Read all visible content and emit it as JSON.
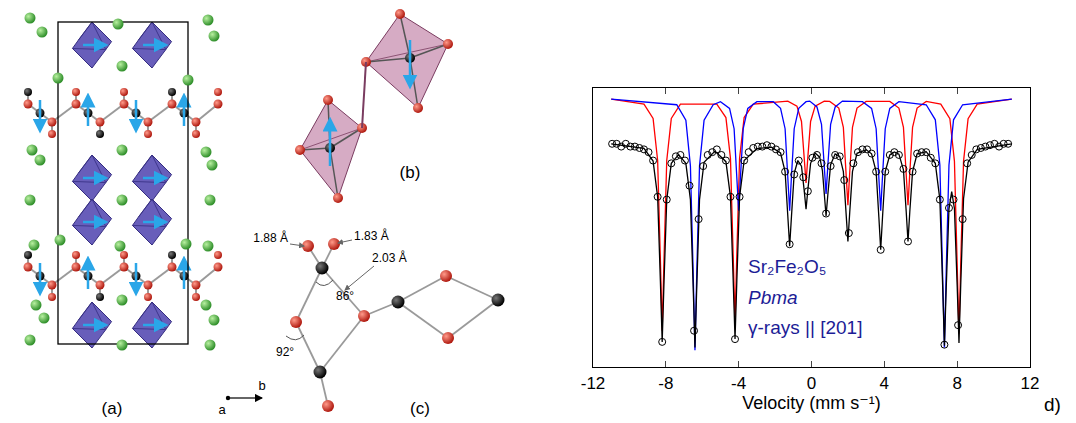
{
  "chart_data": {
    "type": "scatter",
    "x_label": "Velocity (mm s⁻¹)",
    "annotations": [
      {
        "text": "Sr₂Fe₂O₅"
      },
      {
        "text": "Pbma"
      },
      {
        "text": "γ-rays || [201]"
      }
    ],
    "xlim": [
      -12,
      12
    ],
    "xticks": [
      -12,
      -8,
      -4,
      0,
      4,
      8,
      12
    ],
    "ylim": [
      0,
      1
    ],
    "tick_labels": "x",
    "grid": false,
    "series": [
      {
        "type": "line",
        "color": "#ff0000",
        "line_style": "solid",
        "x": [
          -11,
          -9.2,
          -8.7,
          -8.45,
          -8.3,
          -8.2,
          -8.1,
          -7.95,
          -7.7,
          -7.2,
          -5.2,
          -4.7,
          -4.45,
          -4.3,
          -4.2,
          -4.1,
          -3.95,
          -3.7,
          -3.2,
          -1.3,
          -0.8,
          -0.55,
          -0.4,
          -0.3,
          -0.2,
          -0.05,
          0.2,
          0.7,
          1.0,
          1.5,
          1.75,
          1.9,
          2.0,
          2.1,
          2.25,
          2.5,
          3.0,
          4.3,
          4.8,
          5.05,
          5.2,
          5.3,
          5.4,
          5.55,
          5.8,
          6.3,
          7.1,
          7.6,
          7.85,
          8.0,
          8.1,
          8.2,
          8.35,
          8.6,
          9.1,
          11
        ],
        "values": [
          0.96,
          0.942,
          0.891,
          0.74,
          0.387,
          0.13,
          0.387,
          0.74,
          0.891,
          0.942,
          0.942,
          0.894,
          0.748,
          0.408,
          0.16,
          0.408,
          0.748,
          0.894,
          0.942,
          0.953,
          0.935,
          0.88,
          0.753,
          0.66,
          0.753,
          0.88,
          0.935,
          0.953,
          0.952,
          0.928,
          0.859,
          0.698,
          0.58,
          0.698,
          0.859,
          0.928,
          0.952,
          0.952,
          0.928,
          0.859,
          0.698,
          0.58,
          0.698,
          0.859,
          0.928,
          0.952,
          0.942,
          0.89,
          0.737,
          0.38,
          0.12,
          0.38,
          0.737,
          0.89,
          0.942,
          0.96
        ]
      },
      {
        "type": "line",
        "color": "#0000ff",
        "line_style": "solid",
        "x": [
          -11,
          -7.4,
          -6.9,
          -6.65,
          -6.5,
          -6.4,
          -6.3,
          -6.15,
          -5.9,
          -5.4,
          -5.0,
          -4.5,
          -4.25,
          -4.1,
          -4.0,
          -3.9,
          -3.75,
          -3.5,
          -3.0,
          -2.1,
          -1.7,
          -1.45,
          -1.3,
          -1.2,
          -1.1,
          -0.95,
          -0.7,
          -0.3,
          -0.1,
          0.3,
          0.55,
          0.7,
          0.8,
          0.9,
          1.05,
          1.3,
          1.7,
          2.8,
          3.3,
          3.55,
          3.7,
          3.8,
          3.9,
          4.05,
          4.3,
          4.8,
          6.3,
          6.8,
          7.05,
          7.2,
          7.3,
          7.4,
          7.55,
          7.8,
          8.3,
          11
        ],
        "values": [
          0.96,
          0.94,
          0.885,
          0.721,
          0.339,
          0.06,
          0.339,
          0.721,
          0.885,
          0.94,
          0.951,
          0.927,
          0.854,
          0.684,
          0.56,
          0.684,
          0.854,
          0.927,
          0.951,
          0.951,
          0.927,
          0.854,
          0.684,
          0.56,
          0.684,
          0.854,
          0.927,
          0.951,
          0.953,
          0.932,
          0.87,
          0.725,
          0.62,
          0.725,
          0.87,
          0.932,
          0.953,
          0.951,
          0.927,
          0.854,
          0.684,
          0.56,
          0.684,
          0.854,
          0.927,
          0.951,
          0.94,
          0.886,
          0.724,
          0.346,
          0.07,
          0.346,
          0.724,
          0.886,
          0.94,
          0.96
        ]
      },
      {
        "type": "scatter",
        "color": "#000000",
        "marker": "circle-open",
        "x": [
          -10.95,
          -10.7,
          -10.45,
          -10.2,
          -9.95,
          -9.7,
          -9.45,
          -9.2,
          -8.95,
          -8.7,
          -8.45,
          -8.2,
          -7.95,
          -7.7,
          -7.45,
          -7.2,
          -6.95,
          -6.7,
          -6.45,
          -6.2,
          -5.95,
          -5.7,
          -5.45,
          -5.2,
          -4.95,
          -4.7,
          -4.45,
          -4.2,
          -3.95,
          -3.7,
          -3.45,
          -3.2,
          -2.95,
          -2.7,
          -2.45,
          -2.2,
          -1.95,
          -1.7,
          -1.45,
          -1.2,
          -0.95,
          -0.7,
          -0.45,
          -0.2,
          0.05,
          0.3,
          0.55,
          0.8,
          1.05,
          1.3,
          1.55,
          1.8,
          2.05,
          2.3,
          2.55,
          2.8,
          3.05,
          3.3,
          3.55,
          3.8,
          4.05,
          4.3,
          4.55,
          4.8,
          5.05,
          5.3,
          5.55,
          5.8,
          6.05,
          6.3,
          6.55,
          6.8,
          7.05,
          7.3,
          7.55,
          7.8,
          8.05,
          8.3,
          8.55,
          8.8,
          9.05,
          9.3,
          9.55,
          9.8,
          10.05,
          10.3,
          10.55,
          10.8
        ],
        "values": [
          0.8,
          0.8,
          0.79,
          0.8,
          0.79,
          0.79,
          0.785,
          0.78,
          0.77,
          0.74,
          0.61,
          0.09,
          0.6,
          0.73,
          0.755,
          0.76,
          0.74,
          0.65,
          0.13,
          0.53,
          0.72,
          0.76,
          0.77,
          0.78,
          0.76,
          0.74,
          0.61,
          0.1,
          0.61,
          0.74,
          0.77,
          0.785,
          0.79,
          0.79,
          0.795,
          0.79,
          0.78,
          0.77,
          0.7,
          0.44,
          0.69,
          0.74,
          0.68,
          0.63,
          0.75,
          0.76,
          0.73,
          0.55,
          0.72,
          0.76,
          0.755,
          0.67,
          0.48,
          0.73,
          0.77,
          0.78,
          0.78,
          0.765,
          0.7,
          0.42,
          0.7,
          0.76,
          0.77,
          0.76,
          0.71,
          0.45,
          0.7,
          0.765,
          0.77,
          0.77,
          0.75,
          0.73,
          0.6,
          0.08,
          0.57,
          0.6,
          0.15,
          0.53,
          0.73,
          0.76,
          0.78,
          0.785,
          0.79,
          0.795,
          0.8,
          0.79,
          0.8,
          0.8
        ]
      },
      {
        "type": "line",
        "color": "#000000",
        "line_style": "solid",
        "x": [
          -11,
          -9.2,
          -8.7,
          -8.45,
          -8.3,
          -8.2,
          -8.1,
          -7.95,
          -7.7,
          -7.3,
          -6.9,
          -6.65,
          -6.5,
          -6.4,
          -6.3,
          -6.15,
          -5.9,
          -5.3,
          -4.7,
          -4.45,
          -4.3,
          -4.2,
          -4.1,
          -3.95,
          -3.7,
          -3.0,
          -2.2,
          -1.7,
          -1.45,
          -1.3,
          -1.2,
          -1.1,
          -0.95,
          -0.75,
          -0.55,
          -0.4,
          -0.3,
          -0.2,
          -0.05,
          0.2,
          0.45,
          0.6,
          0.7,
          0.8,
          0.9,
          1.05,
          1.3,
          1.55,
          1.75,
          1.9,
          2.0,
          2.1,
          2.25,
          2.5,
          3.0,
          3.3,
          3.55,
          3.7,
          3.8,
          3.9,
          4.05,
          4.3,
          4.55,
          4.8,
          5.05,
          5.2,
          5.3,
          5.4,
          5.55,
          5.8,
          6.3,
          6.8,
          7.05,
          7.2,
          7.3,
          7.4,
          7.55,
          7.7,
          7.85,
          8.0,
          8.1,
          8.2,
          8.35,
          8.6,
          9.1,
          11
        ],
        "values": [
          0.8,
          0.784,
          0.738,
          0.61,
          0.309,
          0.09,
          0.305,
          0.6,
          0.73,
          0.761,
          0.73,
          0.6,
          0.29,
          0.07,
          0.29,
          0.6,
          0.734,
          0.774,
          0.736,
          0.61,
          0.31,
          0.1,
          0.31,
          0.61,
          0.74,
          0.783,
          0.788,
          0.767,
          0.7,
          0.546,
          0.433,
          0.54,
          0.694,
          0.74,
          0.72,
          0.632,
          0.566,
          0.635,
          0.73,
          0.767,
          0.752,
          0.704,
          0.62,
          0.541,
          0.62,
          0.725,
          0.764,
          0.755,
          0.7,
          0.555,
          0.45,
          0.555,
          0.7,
          0.766,
          0.779,
          0.764,
          0.7,
          0.537,
          0.42,
          0.537,
          0.7,
          0.76,
          0.771,
          0.763,
          0.707,
          0.558,
          0.45,
          0.558,
          0.7,
          0.764,
          0.772,
          0.73,
          0.6,
          0.297,
          0.076,
          0.286,
          0.567,
          0.629,
          0.568,
          0.292,
          0.086,
          0.304,
          0.603,
          0.734,
          0.78,
          0.8
        ]
      }
    ]
  },
  "diagram": {
    "panels": [
      {
        "label": "(a)",
        "axis_labels": [
          "a",
          "b"
        ]
      },
      {
        "label": "(b)"
      },
      {
        "label": "(c)",
        "bond_lengths": [
          "1.88 Å",
          "1.83 Å",
          "2.03 Å"
        ],
        "angles": [
          "86°",
          "92°"
        ]
      },
      {
        "label": "d)"
      }
    ]
  }
}
